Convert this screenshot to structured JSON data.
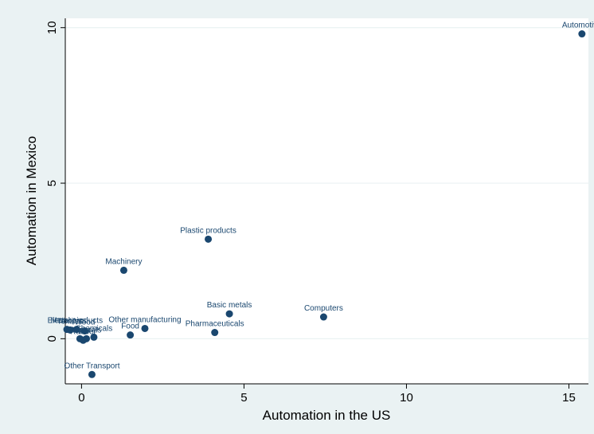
{
  "chart_data": {
    "type": "scatter",
    "title": "",
    "xlabel": "Automation in the US",
    "ylabel": "Automation in Mexico",
    "xlim": [
      -0.5,
      15.6
    ],
    "ylim": [
      -1.45,
      10.3
    ],
    "xticks": [
      0,
      5,
      10,
      15
    ],
    "yticks": [
      0,
      5,
      10
    ],
    "grid": "horizontal",
    "legend": "none",
    "colors": {
      "plot_background": "#ffffff",
      "outer_background": "#eaf2f3",
      "marker": "#1a476f",
      "label": "#1a476f",
      "grid": "#eaf2f3"
    },
    "points": [
      {
        "label": "Automotive",
        "x": 15.4,
        "y": 9.8
      },
      {
        "label": "Plastic products",
        "x": 3.9,
        "y": 3.2
      },
      {
        "label": "Machinery",
        "x": 1.3,
        "y": 2.2
      },
      {
        "label": "Basic metals",
        "x": 4.55,
        "y": 0.8
      },
      {
        "label": "Computers",
        "x": 7.45,
        "y": 0.7
      },
      {
        "label": "Other manufacturing",
        "x": 1.95,
        "y": 0.33
      },
      {
        "label": "Food",
        "x": 1.5,
        "y": 0.12
      },
      {
        "label": "Pharmaceuticals",
        "x": 4.1,
        "y": 0.2
      },
      {
        "label": "Electronics",
        "x": -0.45,
        "y": 0.3
      },
      {
        "label": "Textiles",
        "x": -0.35,
        "y": 0.28
      },
      {
        "label": "Metal products",
        "x": -0.15,
        "y": 0.3
      },
      {
        "label": "Paper",
        "x": -0.05,
        "y": 0.0
      },
      {
        "label": "Wood",
        "x": 0.1,
        "y": 0.25
      },
      {
        "label": "Minerals",
        "x": 0.15,
        "y": 0.0
      },
      {
        "label": "Chemicals",
        "x": 0.38,
        "y": 0.05
      },
      {
        "label": "Rubber",
        "x": 0.05,
        "y": -0.05
      },
      {
        "label": "Other Transport",
        "x": 0.32,
        "y": -1.15
      }
    ]
  }
}
